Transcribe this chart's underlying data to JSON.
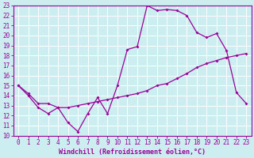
{
  "xlabel": "Windchill (Refroidissement éolien,°C)",
  "bg_color": "#cceef0",
  "grid_color": "#aadddd",
  "line_color": "#990099",
  "spine_color": "#990099",
  "xlim": [
    -0.5,
    23.5
  ],
  "ylim": [
    10,
    23
  ],
  "xticks": [
    0,
    1,
    2,
    3,
    4,
    5,
    6,
    7,
    8,
    9,
    10,
    11,
    12,
    13,
    14,
    15,
    16,
    17,
    18,
    19,
    20,
    21,
    22,
    23
  ],
  "yticks": [
    10,
    11,
    12,
    13,
    14,
    15,
    16,
    17,
    18,
    19,
    20,
    21,
    22,
    23
  ],
  "line1_x": [
    0,
    1,
    2,
    3,
    4,
    5,
    6,
    7,
    8,
    9,
    10,
    11,
    12,
    13,
    14,
    15,
    16,
    17,
    18,
    19,
    20,
    21,
    22,
    23
  ],
  "line1_y": [
    15,
    14,
    12.8,
    12.2,
    12.8,
    11.3,
    10.4,
    12.2,
    13.8,
    12.2,
    15.0,
    18.6,
    18.9,
    23.0,
    22.5,
    22.6,
    22.5,
    22.0,
    20.3,
    19.8,
    20.2,
    18.5,
    14.3,
    13.2
  ],
  "line2_x": [
    0,
    1,
    2,
    3,
    4,
    5,
    6,
    7,
    8,
    9,
    10,
    11,
    12,
    13,
    14,
    15,
    16,
    17,
    18,
    19,
    20,
    21,
    22,
    23
  ],
  "line2_y": [
    15,
    14.2,
    13.2,
    13.2,
    12.8,
    12.8,
    13.0,
    13.2,
    13.4,
    13.6,
    13.8,
    14.0,
    14.2,
    14.5,
    15.0,
    15.2,
    15.7,
    16.2,
    16.8,
    17.2,
    17.5,
    17.8,
    18.0,
    18.2
  ],
  "tick_fontsize": 5.5,
  "label_fontsize": 6.0
}
